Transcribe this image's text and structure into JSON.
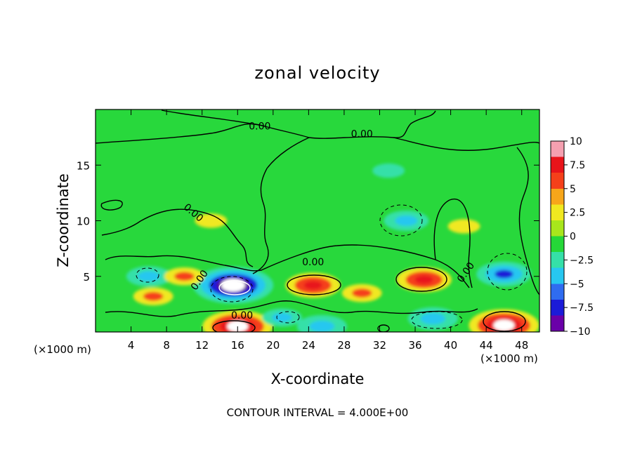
{
  "chart_data": {
    "type": "heatmap",
    "title": "zonal velocity",
    "xlabel": "X-coordinate",
    "ylabel": "Z-coordinate",
    "x_unit": "(×1000 m)",
    "x_unit_right": "(×1000 m)",
    "footer": "CONTOUR INTERVAL = 4.000E+00",
    "xlim": [
      0,
      50
    ],
    "ylim": [
      0,
      20
    ],
    "xticks": [
      4,
      8,
      12,
      16,
      20,
      24,
      28,
      32,
      36,
      40,
      44,
      48
    ],
    "yticks": [
      5,
      10,
      15
    ],
    "colorbar": {
      "min": -10,
      "max": 10,
      "ticks": [
        "10",
        "7.5",
        "5",
        "2.5",
        "0",
        "−2.5",
        "−5",
        "−7.5",
        "−10"
      ],
      "colors": [
        "#6a00a8",
        "#1b1bd8",
        "#2f6cf0",
        "#27c7f0",
        "#35e0a8",
        "#25d838",
        "#a8e61c",
        "#f0e820",
        "#f7a61a",
        "#f5401a",
        "#e8141a",
        "#f5a0b0"
      ]
    },
    "contour_labels": [
      "0.00",
      "0.00",
      "0.00",
      "0.00",
      "0.00",
      "0.00",
      "0.00"
    ],
    "features": [
      {
        "x": 16,
        "z": 0.5,
        "value": 10
      },
      {
        "x": 46,
        "z": 0.6,
        "value": 10
      },
      {
        "x": 15.5,
        "z": 4.2,
        "value": -12
      },
      {
        "x": 24.5,
        "z": 4.2,
        "value": 7
      },
      {
        "x": 37,
        "z": 4.7,
        "value": 7
      },
      {
        "x": 46,
        "z": 5.2,
        "value": -7
      },
      {
        "x": 35,
        "z": 10,
        "value": -5
      },
      {
        "x": 6,
        "z": 5,
        "value": -5
      },
      {
        "x": 25.5,
        "z": 0.5,
        "value": -6
      },
      {
        "x": 38,
        "z": 1.2,
        "value": -6
      },
      {
        "x": 21,
        "z": 1.3,
        "value": -4
      },
      {
        "x": 30,
        "z": 3.5,
        "value": 4
      },
      {
        "x": 6.5,
        "z": 3.2,
        "value": 4
      },
      {
        "x": 10,
        "z": 5,
        "value": 4
      },
      {
        "x": 33,
        "z": 14.5,
        "value": -2.5
      },
      {
        "x": 13,
        "z": 10,
        "value": 2.5
      },
      {
        "x": 41.5,
        "z": 9.5,
        "value": 2.5
      }
    ]
  }
}
